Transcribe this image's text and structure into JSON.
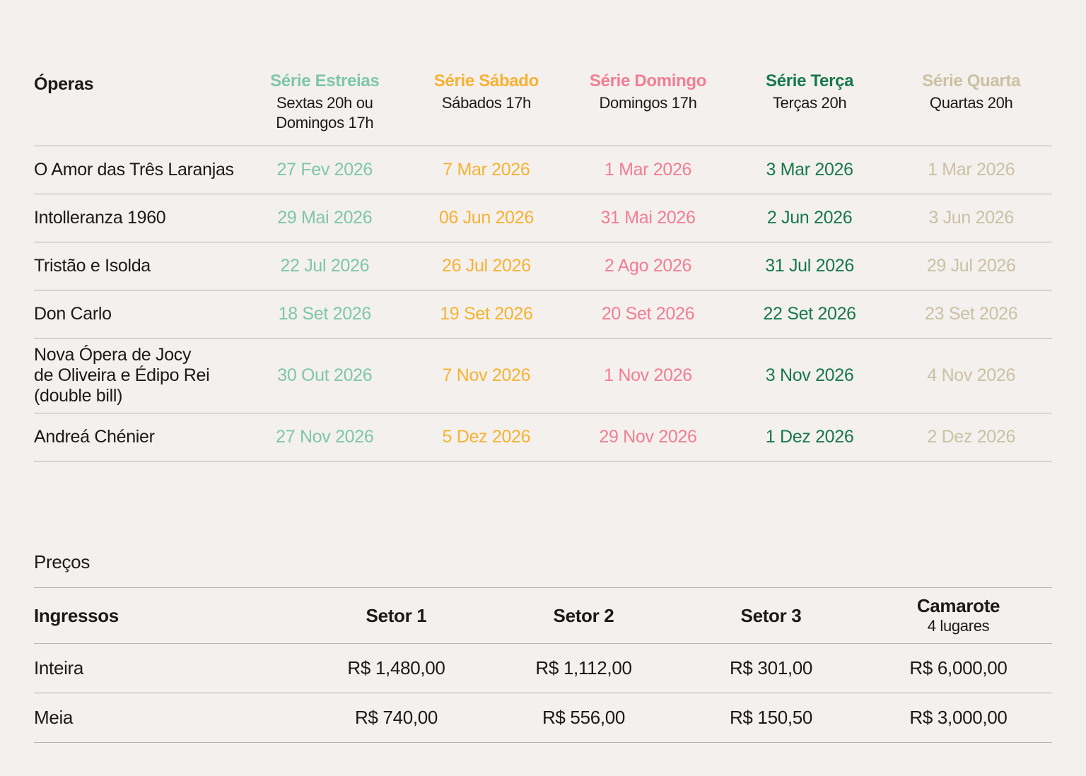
{
  "schedule": {
    "col0_header": "Óperas",
    "series": [
      {
        "name": "Série Estreias",
        "subtitle": "Sextas 20h ou\nDomingos 17h",
        "color": "#7EC6AE"
      },
      {
        "name": "Série Sábado",
        "subtitle": "Sábados 17h",
        "color": "#F6B233"
      },
      {
        "name": "Série Domingo",
        "subtitle": "Domingos 17h",
        "color": "#F27E93"
      },
      {
        "name": "Série Terça",
        "subtitle": "Terças 20h",
        "color": "#17794B"
      },
      {
        "name": "Série Quarta",
        "subtitle": "Quartas 20h",
        "color": "#CBC1A3"
      }
    ],
    "rows": [
      {
        "opera": "O Amor das Três Laranjas",
        "dates": [
          "27 Fev 2026",
          "7 Mar 2026",
          "1 Mar 2026",
          "3 Mar 2026",
          "1 Mar 2026"
        ]
      },
      {
        "opera": "Intolleranza 1960",
        "dates": [
          "29 Mai 2026",
          "06 Jun 2026",
          "31 Mai 2026",
          "2 Jun 2026",
          "3 Jun 2026"
        ]
      },
      {
        "opera": "Tristão e Isolda",
        "dates": [
          "22 Jul 2026",
          "26 Jul 2026",
          "2 Ago 2026",
          "31 Jul 2026",
          "29 Jul 2026"
        ]
      },
      {
        "opera": "Don Carlo",
        "dates": [
          "18 Set 2026",
          "19 Set 2026",
          "20 Set 2026",
          "22 Set 2026",
          "23 Set 2026"
        ]
      },
      {
        "opera": "Nova Ópera de Jocy\nde Oliveira e Édipo Rei\n(double bill)",
        "dates": [
          "30 Out 2026",
          "7 Nov 2026",
          "1 Nov 2026",
          "3 Nov 2026",
          "4 Nov 2026"
        ]
      },
      {
        "opera": "Andreá Chénier",
        "dates": [
          "27 Nov 2026",
          "5 Dez 2026",
          "29 Nov 2026",
          "1 Dez 2026",
          "2 Dez 2026"
        ]
      }
    ]
  },
  "prices": {
    "heading": "Preços",
    "col0_header": "Ingressos",
    "columns": [
      {
        "name": "Setor 1"
      },
      {
        "name": "Setor 2"
      },
      {
        "name": "Setor 3"
      },
      {
        "name": "Camarote",
        "subtitle": "4 lugares"
      }
    ],
    "rows": [
      {
        "label": "Inteira",
        "values": [
          "R$ 1,480,00",
          "R$ 1,112,00",
          "R$ 301,00",
          "R$ 6,000,00"
        ]
      },
      {
        "label": "Meia",
        "values": [
          "R$ 740,00",
          "R$ 556,00",
          "R$ 150,50",
          "R$ 3,000,00"
        ]
      }
    ]
  },
  "colors": {
    "background": "#F4F0ED",
    "text": "#1A1A1A",
    "divider": "#B8B3AF"
  }
}
